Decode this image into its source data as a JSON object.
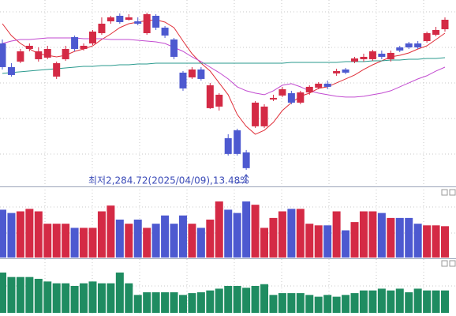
{
  "chart_data": [
    {
      "type": "candlestick",
      "up_color": "#d42a45",
      "down_color": "#4d59d0",
      "open": [
        2605,
        2545,
        2559,
        2591,
        2565,
        2569,
        2521,
        2565,
        2621,
        2591,
        2605,
        2631,
        2661,
        2675,
        2665,
        2661,
        2631,
        2675,
        2645,
        2615,
        2531,
        2519,
        2539,
        2441,
        2445,
        2365,
        2385,
        2329,
        2395,
        2395,
        2463,
        2473,
        2479,
        2455,
        2481,
        2493,
        2503,
        2529,
        2539,
        2559,
        2565,
        2565,
        2579,
        2565,
        2595,
        2605,
        2605,
        2611,
        2627,
        2641
      ],
      "high": [
        2615,
        2555,
        2591,
        2605,
        2595,
        2599,
        2559,
        2599,
        2625,
        2605,
        2639,
        2671,
        2675,
        2681,
        2679,
        2671,
        2683,
        2679,
        2649,
        2619,
        2535,
        2545,
        2545,
        2505,
        2479,
        2375,
        2389,
        2335,
        2459,
        2451,
        2475,
        2495,
        2485,
        2485,
        2499,
        2507,
        2511,
        2541,
        2543,
        2571,
        2579,
        2589,
        2587,
        2587,
        2599,
        2609,
        2611,
        2635,
        2647,
        2671
      ],
      "low": [
        2539,
        2521,
        2555,
        2585,
        2559,
        2565,
        2515,
        2561,
        2585,
        2587,
        2601,
        2627,
        2655,
        2655,
        2663,
        2651,
        2627,
        2639,
        2619,
        2565,
        2485,
        2515,
        2511,
        2439,
        2435,
        2321,
        2321,
        2284.72,
        2391,
        2391,
        2459,
        2469,
        2451,
        2451,
        2475,
        2489,
        2489,
        2523,
        2527,
        2555,
        2559,
        2561,
        2565,
        2559,
        2583,
        2591,
        2591,
        2607,
        2623,
        2635
      ],
      "close": [
        2545,
        2525,
        2585,
        2599,
        2585,
        2591,
        2555,
        2591,
        2591,
        2599,
        2635,
        2655,
        2671,
        2659,
        2671,
        2655,
        2679,
        2645,
        2625,
        2571,
        2491,
        2539,
        2515,
        2499,
        2475,
        2325,
        2325,
        2289,
        2455,
        2445,
        2467,
        2489,
        2455,
        2481,
        2495,
        2503,
        2495,
        2535,
        2531,
        2567,
        2571,
        2585,
        2571,
        2581,
        2587,
        2595,
        2595,
        2631,
        2639,
        2665
      ],
      "series": [
        {
          "color": "#e0303a",
          "values": [
            2655,
            2625,
            2605,
            2591,
            2579,
            2575,
            2571,
            2575,
            2585,
            2591,
            2599,
            2615,
            2629,
            2645,
            2655,
            2659,
            2663,
            2665,
            2659,
            2645,
            2611,
            2579,
            2555,
            2535,
            2505,
            2475,
            2425,
            2395,
            2375,
            2385,
            2405,
            2435,
            2455,
            2471,
            2479,
            2491,
            2495,
            2505,
            2515,
            2525,
            2539,
            2551,
            2561,
            2571,
            2575,
            2581,
            2591,
            2599,
            2615,
            2631
          ]
        },
        {
          "color": "#c24ad0",
          "values": [
            2605,
            2611,
            2615,
            2615,
            2617,
            2619,
            2619,
            2619,
            2619,
            2617,
            2617,
            2617,
            2615,
            2615,
            2615,
            2613,
            2611,
            2609,
            2605,
            2595,
            2585,
            2571,
            2559,
            2545,
            2531,
            2515,
            2495,
            2485,
            2479,
            2475,
            2485,
            2499,
            2503,
            2495,
            2485,
            2479,
            2475,
            2471,
            2469,
            2469,
            2471,
            2475,
            2479,
            2485,
            2495,
            2505,
            2515,
            2523,
            2535,
            2545
          ]
        },
        {
          "color": "#2a9a8e",
          "values": [
            2529,
            2531,
            2533,
            2535,
            2537,
            2539,
            2541,
            2543,
            2545,
            2547,
            2547,
            2549,
            2549,
            2551,
            2551,
            2553,
            2553,
            2555,
            2555,
            2555,
            2555,
            2555,
            2555,
            2555,
            2555,
            2555,
            2555,
            2555,
            2555,
            2555,
            2555,
            2555,
            2557,
            2557,
            2557,
            2557,
            2557,
            2557,
            2559,
            2559,
            2559,
            2561,
            2561,
            2563,
            2563,
            2565,
            2565,
            2567,
            2567,
            2569
          ]
        }
      ],
      "annotation": "최저2,284.72(2025/04/09),13.48%"
    },
    {
      "type": "bar",
      "values": [
        58,
        54,
        56,
        59,
        56,
        41,
        41,
        41,
        36,
        36,
        36,
        56,
        63,
        46,
        41,
        46,
        36,
        41,
        51,
        41,
        51,
        41,
        36,
        46,
        68,
        58,
        54,
        68,
        64,
        36,
        48,
        56,
        59,
        59,
        41,
        39,
        39,
        56,
        33,
        43,
        56,
        56,
        54,
        48,
        48,
        48,
        41,
        39,
        39,
        38
      ]
    },
    {
      "type": "bar",
      "color": "#1f8c61",
      "values": [
        45,
        40,
        40,
        40,
        38,
        35,
        33,
        33,
        30,
        33,
        35,
        33,
        33,
        45,
        33,
        20,
        23,
        23,
        23,
        23,
        20,
        22,
        23,
        25,
        27,
        30,
        30,
        28,
        30,
        32,
        20,
        22,
        22,
        22,
        20,
        18,
        20,
        18,
        20,
        22,
        25,
        25,
        27,
        25,
        27,
        23,
        27,
        25,
        25,
        25
      ]
    }
  ]
}
